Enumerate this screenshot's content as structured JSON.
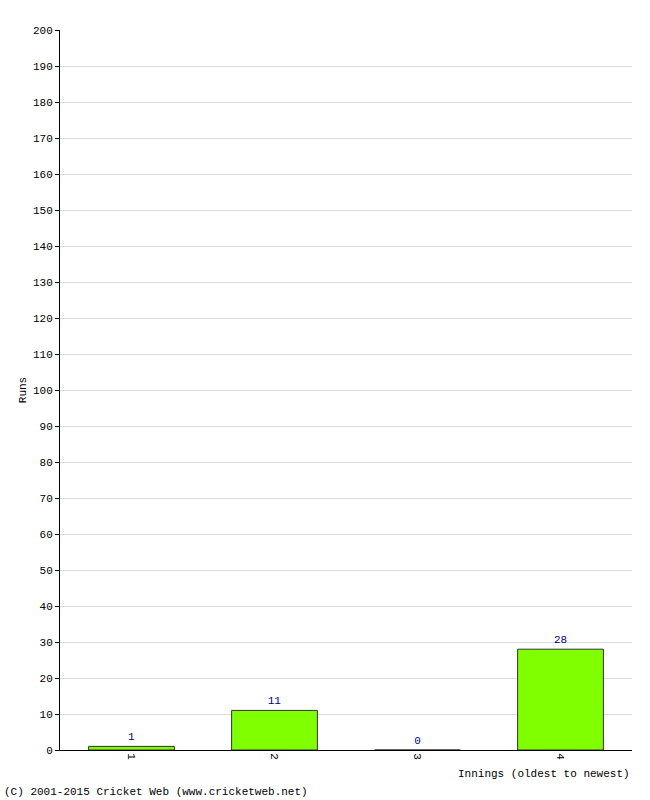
{
  "chart_data": {
    "type": "bar",
    "categories": [
      "1",
      "2",
      "3",
      "4"
    ],
    "values": [
      1,
      11,
      0,
      28
    ],
    "color": "#80ff00",
    "ylim": [
      0,
      200
    ],
    "yticks": [
      0,
      10,
      20,
      30,
      40,
      50,
      60,
      70,
      80,
      90,
      100,
      110,
      120,
      130,
      140,
      150,
      160,
      170,
      180,
      190,
      200
    ],
    "grid": true,
    "data_labels": true,
    "x_label": "Innings (oldest to newest)",
    "y_label": "Runs",
    "annotations": [
      "(C) 2001-2015 Cricket Web (www.cricketweb.net)"
    ]
  }
}
